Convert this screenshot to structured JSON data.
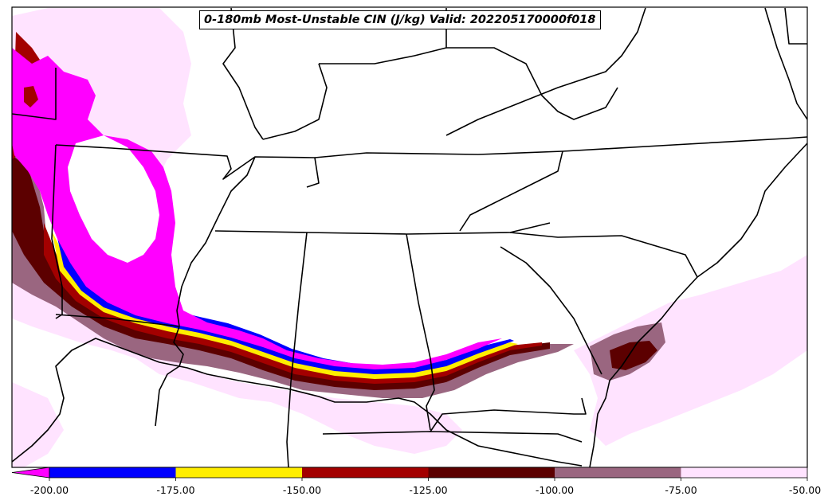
{
  "title": "0-180mb Most-Unstable CIN (J/kg) Valid: 202205170000f018",
  "colorbar": {
    "extend": "min",
    "levels": [
      -200,
      -175,
      -150,
      -125,
      -100,
      -75,
      -50
    ],
    "tick_labels": [
      "-200.00",
      "-175.00",
      "-150.00",
      "-125.00",
      "-100.00",
      "-75.00",
      "-50.00"
    ],
    "colors": [
      "#ff00ff",
      "#0000ff",
      "#ffee00",
      "#a30000",
      "#5c0000",
      "#9a6680",
      "#ffe3ff"
    ],
    "color_names": [
      "magenta (<-200)",
      "blue",
      "yellow",
      "red",
      "dark red",
      "mauve",
      "light pink"
    ]
  },
  "map": {
    "region": "Southeastern United States",
    "features": [
      "state borders",
      "coastlines",
      "filled CIN contours"
    ]
  }
}
